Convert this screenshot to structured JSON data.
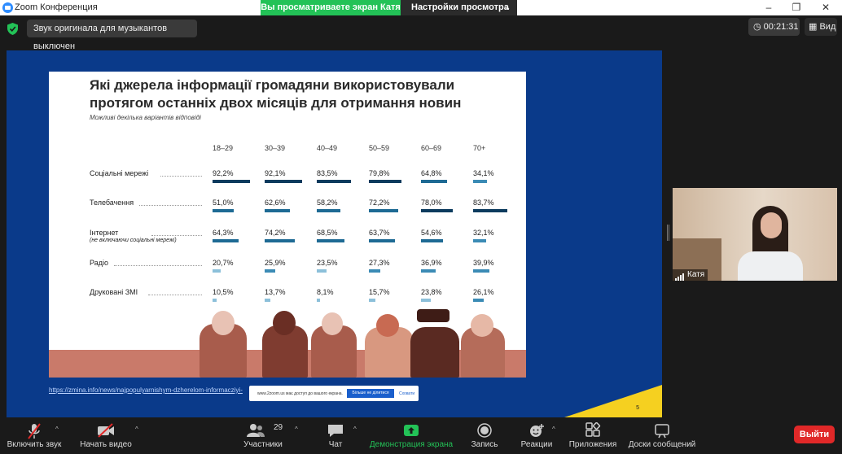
{
  "window": {
    "title": "Zoom Конференция",
    "sharing_banner": "Вы просматриваете экран Катя",
    "view_settings": "Настройки просмотра"
  },
  "info": {
    "musician_audio": "Звук оригинала для музыкантов выключен",
    "timer": "00:21:31",
    "view": "Вид"
  },
  "slide": {
    "title": "Які джерела інформації громадяни використовували протягом останніх двох місяців для отримання новин",
    "note": "Можливі декілька варіантів відповіді",
    "page": "5",
    "link": "https://zmina.info/news/najpopulyarnishym-dzherelom-informacziyi-",
    "zoom_notice": "www.2zoom.us має доступ до вашого екрана.",
    "zoom_hide": "Більше не ділитися",
    "zoom_close": "Сховати"
  },
  "chart_data": {
    "type": "table",
    "categories": [
      "18–29",
      "30–39",
      "40–49",
      "50–59",
      "60–69",
      "70+"
    ],
    "series": [
      {
        "name": "Соціальні мережі",
        "values": [
          92.2,
          92.1,
          83.5,
          79.8,
          64.8,
          34.1
        ],
        "labels": [
          "92,2%",
          "92,1%",
          "83,5%",
          "79,8%",
          "64,8%",
          "34,1%"
        ]
      },
      {
        "name": "Телебачення",
        "values": [
          51.0,
          62.6,
          58.2,
          72.2,
          78.0,
          83.7
        ],
        "labels": [
          "51,0%",
          "62,6%",
          "58,2%",
          "72,2%",
          "78,0%",
          "83,7%"
        ]
      },
      {
        "name": "Інтернет",
        "sub": "(не включаючи соціальні мережі)",
        "values": [
          64.3,
          74.2,
          68.5,
          63.7,
          54.6,
          32.1
        ],
        "labels": [
          "64,3%",
          "74,2%",
          "68,5%",
          "63,7%",
          "54,6%",
          "32,1%"
        ]
      },
      {
        "name": "Радіо",
        "values": [
          20.7,
          25.9,
          23.5,
          27.3,
          36.9,
          39.9
        ],
        "labels": [
          "20,7%",
          "25,9%",
          "23,5%",
          "27,3%",
          "36,9%",
          "39,9%"
        ]
      },
      {
        "name": "Друковані ЗМІ",
        "values": [
          10.5,
          13.7,
          8.1,
          15.7,
          23.8,
          26.1
        ],
        "labels": [
          "10,5%",
          "13,7%",
          "8,1%",
          "15,7%",
          "23,8%",
          "26,1%"
        ]
      }
    ],
    "ylim": [
      0,
      100
    ],
    "colors": {
      "dark": "#0c3b5e",
      "mid": "#1e6a94",
      "light": "#3b8bb5",
      "pale": "#8cc0da"
    }
  },
  "participant": {
    "name": "Катя"
  },
  "toolbar": {
    "audio": "Включить звук",
    "video": "Начать видео",
    "participants": "Участники",
    "participants_count": "29",
    "chat": "Чат",
    "share": "Демонстрация экрана",
    "record": "Запись",
    "reactions": "Реакции",
    "apps": "Приложения",
    "whiteboards": "Доски сообщений",
    "leave": "Выйти"
  },
  "colors": {
    "share_green": "#23c257",
    "leave_red": "#e02828",
    "slide_blue": "#0a3a8a",
    "slide_yellow": "#f5d020"
  }
}
